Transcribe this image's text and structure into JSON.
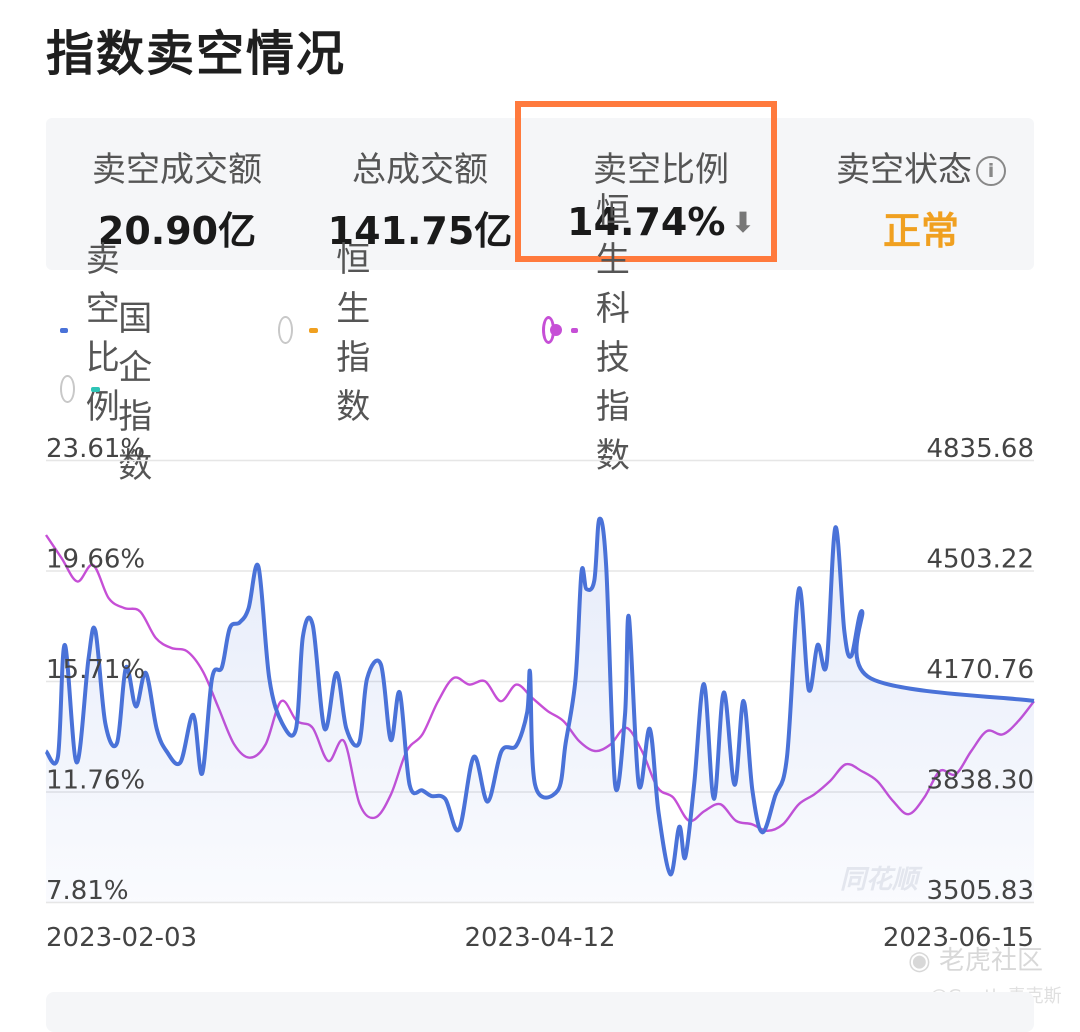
{
  "page": {
    "title": "指数卖空情况"
  },
  "stats": [
    {
      "label": "卖空成交额",
      "value": "20.90亿"
    },
    {
      "label": "总成交额",
      "value": "141.75亿"
    },
    {
      "label": "卖空比例",
      "value": "14.74%",
      "trend_icon": "down-arrow-icon"
    },
    {
      "label": "卖空状态",
      "value": "正常",
      "info_icon": "info-icon"
    }
  ],
  "colors": {
    "short_ratio": "#4a72d8",
    "hsi": "#f0a020",
    "hstech": "#c64fd6",
    "hscei": "#2ec4b6",
    "status_ok": "#f0a020",
    "highlight": "#ff7a3d"
  },
  "legend": [
    {
      "label": "卖空比例",
      "color": "#4a72d8",
      "has_radio": false,
      "selected": true
    },
    {
      "label": "恒生指数",
      "color": "#f0a020",
      "has_radio": true,
      "selected": false
    },
    {
      "label": "恒生科技指数",
      "color": "#c64fd6",
      "has_radio": true,
      "selected": true
    },
    {
      "label": "国企指数",
      "color": "#2ec4b6",
      "has_radio": true,
      "selected": false
    }
  ],
  "chart_data": {
    "type": "line",
    "x_labels": [
      "2023-02-03",
      "2023-04-12",
      "2023-06-15"
    ],
    "y_left_ticks": [
      "23.61%",
      "19.66%",
      "15.71%",
      "11.76%",
      "7.81%"
    ],
    "y_right_ticks": [
      "4835.68",
      "4503.22",
      "4170.76",
      "3838.30",
      "3505.83"
    ],
    "y_left_range": [
      7.81,
      23.61
    ],
    "y_right_range": [
      3505.83,
      4835.68
    ],
    "grid": true,
    "series": [
      {
        "name": "卖空比例",
        "axis": "left",
        "area": true,
        "values": [
          13.2,
          13.0,
          17.0,
          12.8,
          16.5,
          17.5,
          14.2,
          13.5,
          16.2,
          14.8,
          16.0,
          14.0,
          13.2,
          12.8,
          14.5,
          12.4,
          15.8,
          16.2,
          17.6,
          17.8,
          18.3,
          19.8,
          15.8,
          14.2,
          14.0,
          17.3,
          17.7,
          14.0,
          16.0,
          14.0,
          13.5,
          15.8,
          16.3,
          13.6,
          15.3,
          12.0,
          11.8,
          11.6,
          11.5,
          10.4,
          13.0,
          11.4,
          13.2,
          13.4,
          14.6,
          16.0,
          12.0,
          11.8,
          13.5,
          15.8,
          19.6,
          19.0,
          19.3,
          21.5,
          19.8,
          12.0,
          14.5,
          18.0,
          12.0,
          14.0,
          11.0,
          8.8,
          10.5,
          9.4,
          12.0,
          15.6,
          11.5,
          15.3,
          12.0,
          15.0,
          11.8,
          10.3,
          11.6,
          13.0,
          19.0,
          15.4,
          17.0,
          16.3,
          21.2,
          17.5,
          16.6,
          18.2,
          15.8,
          15.0
        ],
        "x_positions": [
          0.0,
          0.012,
          0.019,
          0.031,
          0.043,
          0.05,
          0.06,
          0.072,
          0.081,
          0.091,
          0.101,
          0.112,
          0.122,
          0.136,
          0.149,
          0.158,
          0.168,
          0.178,
          0.186,
          0.196,
          0.205,
          0.215,
          0.226,
          0.239,
          0.253,
          0.26,
          0.27,
          0.282,
          0.294,
          0.304,
          0.317,
          0.325,
          0.339,
          0.349,
          0.358,
          0.368,
          0.381,
          0.39,
          0.404,
          0.418,
          0.433,
          0.447,
          0.461,
          0.476,
          0.487,
          0.49,
          0.495,
          0.518,
          0.526,
          0.536,
          0.542,
          0.547,
          0.555,
          0.56,
          0.567,
          0.576,
          0.586,
          0.59,
          0.6,
          0.611,
          0.62,
          0.632,
          0.641,
          0.647,
          0.656,
          0.666,
          0.676,
          0.686,
          0.697,
          0.706,
          0.715,
          0.725,
          0.738,
          0.75,
          0.762,
          0.772,
          0.781,
          0.79,
          0.799,
          0.808,
          0.815,
          0.826,
          0.835,
          1.0
        ]
      },
      {
        "name": "恒生科技指数",
        "axis": "right",
        "area": false,
        "values": [
          4610,
          4540,
          4470,
          4520,
          4420,
          4390,
          4380,
          4300,
          4270,
          4260,
          4200,
          4090,
          3980,
          3940,
          3980,
          4110,
          4050,
          4030,
          3930,
          3990,
          3800,
          3760,
          3830,
          3960,
          4010,
          4110,
          4180,
          4160,
          4170,
          4110,
          4160,
          4120,
          4080,
          4050,
          3990,
          3960,
          3980,
          4030,
          3960,
          3850,
          3820,
          3750,
          3780,
          3800,
          3750,
          3740,
          3720,
          3740,
          3800,
          3830,
          3870,
          3920,
          3900,
          3870,
          3810,
          3770,
          3820,
          3900,
          3890,
          3960,
          4020,
          4010,
          4050,
          4110
        ]
      }
    ]
  },
  "watermark": {
    "chart_brand": "同花顺",
    "site": "老虎社区",
    "author": "@Gentle麦克斯"
  }
}
